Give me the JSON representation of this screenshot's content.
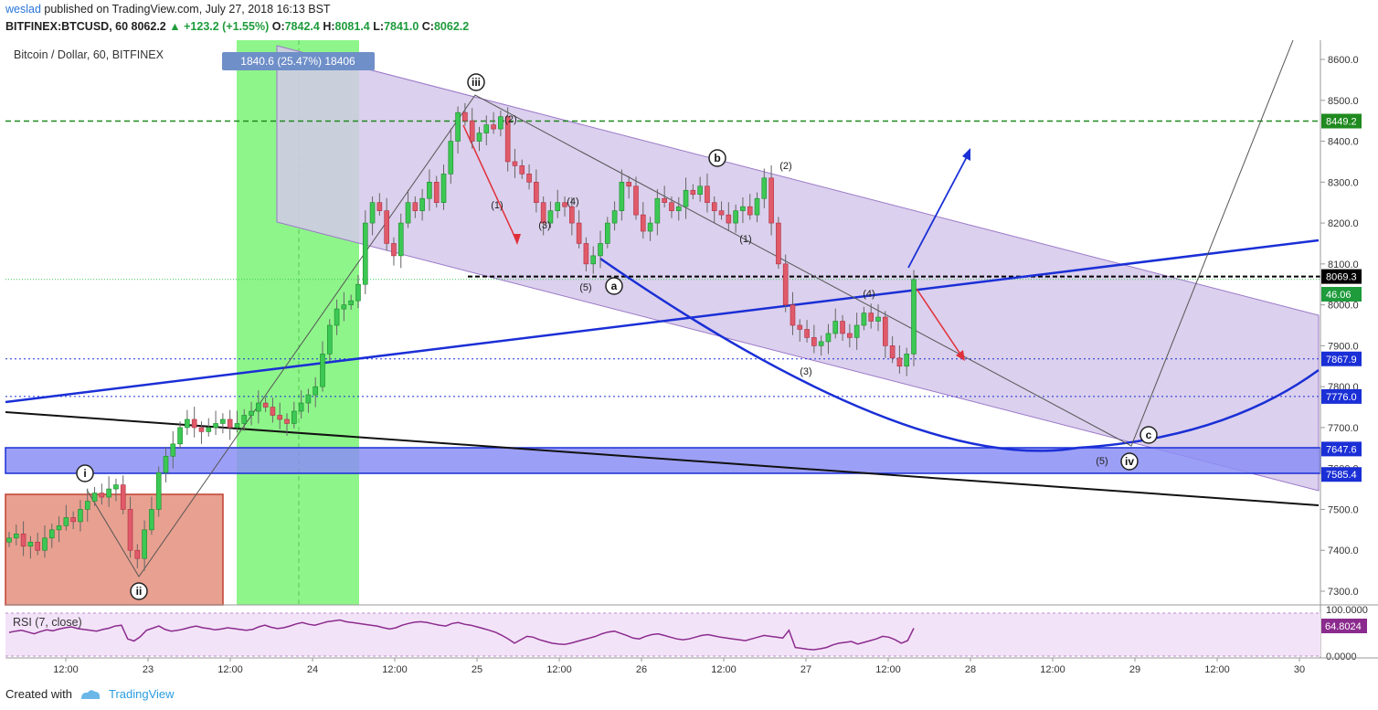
{
  "header": {
    "user": "weslad",
    "published_text": " published on TradingView.com, July 27, 2018 16:13 BST",
    "symbol_line": "BITFINEX:BTCUSD, 60",
    "last": "8062.2",
    "change": "+123.2 (+1.55%)",
    "open_label": "O:",
    "open": "7842.4",
    "high_label": "H:",
    "high": "8081.4",
    "low_label": "L:",
    "low": "7841.0",
    "close_label": "C:",
    "close": "8062.2"
  },
  "chart_title": "Bitcoin / Dollar, 60, BITFINEX",
  "measure_label": "1840.6 (25.47%) 18406",
  "rsi_title": "RSI (7, close)",
  "footer": {
    "created_with": "Created with",
    "brand": "TradingView"
  },
  "colors": {
    "up": "#3cc854",
    "down": "#e05a6a",
    "channel_fill": "#d8cde8",
    "channel_line": "#9a78c8",
    "green_zone": "#8ef58a",
    "red_zone": "#e8a090",
    "support_zone": "#8b8ef5",
    "blue": "#1a2fd6",
    "dashed_green": "#1f8a1f",
    "rsi_line": "#8b2b8e",
    "rsi_bg": "#f3e3f8"
  },
  "chart_data": {
    "type": "candlestick",
    "symbol": "BITFINEX:BTCUSD",
    "timeframe": "60",
    "price_axis_ticks": [
      8600,
      8500,
      8400,
      8300,
      8200,
      8100,
      8000,
      7900,
      7800,
      7700,
      7600,
      7500,
      7400,
      7300
    ],
    "price_axis_tick_labels": [
      "8600.0",
      "8500.0",
      "8400.0",
      "8300.0",
      "8200.0",
      "8100.0",
      "8000.0",
      "7900.0",
      "7800.0",
      "7700.0",
      "7600.0",
      "7500.0",
      "7400.0",
      "7300.0"
    ],
    "ylim": [
      7270,
      8680
    ],
    "time_axis_labels": [
      "12:00",
      "23",
      "12:00",
      "24",
      "12:00",
      "25",
      "12:00",
      "26",
      "12:00",
      "27",
      "12:00",
      "28",
      "12:00",
      "29",
      "12:00",
      "30"
    ],
    "price_badges": [
      {
        "value": "8449.2",
        "color": "#1f8a1f",
        "price": 8449.2
      },
      {
        "value": "8069.3",
        "color": "#000000",
        "price": 8069.3
      },
      {
        "value": "46.06",
        "color": "#1e9b3b",
        "price": 8026
      },
      {
        "value": "7867.9",
        "color": "#1a2fd6",
        "price": 7867.9
      },
      {
        "value": "7776.0",
        "color": "#1a2fd6",
        "price": 7776.0
      },
      {
        "value": "7647.6",
        "color": "#1a2fd6",
        "price": 7647.6
      },
      {
        "value": "7585.4",
        "color": "#1a2fd6",
        "price": 7585.4
      }
    ],
    "horizontal_levels": [
      {
        "price": 8449.2,
        "style": "dashed-green"
      },
      {
        "price": 8069.3,
        "style": "dashed-black"
      },
      {
        "price": 7867.9,
        "style": "dotted-blue"
      },
      {
        "price": 7776.0,
        "style": "dotted-blue"
      }
    ],
    "support_zone": {
      "top": 7647.6,
      "bottom": 7585.4
    },
    "rsi": {
      "axis_labels": [
        "100.0000",
        "0.0000"
      ],
      "last_value": "64.8024",
      "values": [
        55,
        58,
        60,
        56,
        52,
        57,
        61,
        59,
        63,
        66,
        68,
        64,
        62,
        60,
        58,
        62,
        65,
        70,
        72,
        40,
        35,
        45,
        60,
        65,
        70,
        62,
        58,
        60,
        63,
        67,
        70,
        66,
        64,
        61,
        63,
        66,
        64,
        62,
        60,
        62,
        68,
        72,
        67,
        64,
        66,
        70,
        75,
        78,
        74,
        72,
        76,
        80,
        82,
        84,
        80,
        78,
        76,
        74,
        72,
        70,
        66,
        63,
        66,
        72,
        76,
        79,
        80,
        78,
        75,
        72,
        70,
        76,
        78,
        74,
        72,
        68,
        64,
        60,
        55,
        48,
        40,
        30,
        38,
        46,
        44,
        38,
        34,
        30,
        28,
        27,
        30,
        34,
        38,
        42,
        46,
        52,
        56,
        58,
        53,
        48,
        42,
        40,
        46,
        50,
        52,
        48,
        44,
        40,
        38,
        40,
        44,
        48,
        50,
        47,
        44,
        42,
        40,
        38,
        36,
        40,
        44,
        48,
        46,
        44,
        42,
        60,
        20,
        18,
        16,
        15,
        17,
        20,
        26,
        30,
        32,
        34,
        28,
        32,
        36,
        40,
        46,
        44,
        38,
        30,
        36,
        65
      ]
    },
    "labels": [
      "i",
      "ii",
      "iii",
      "iv",
      "a",
      "b",
      "c",
      "(1)",
      "(2)",
      "(3)",
      "(4)",
      "(5)"
    ]
  }
}
